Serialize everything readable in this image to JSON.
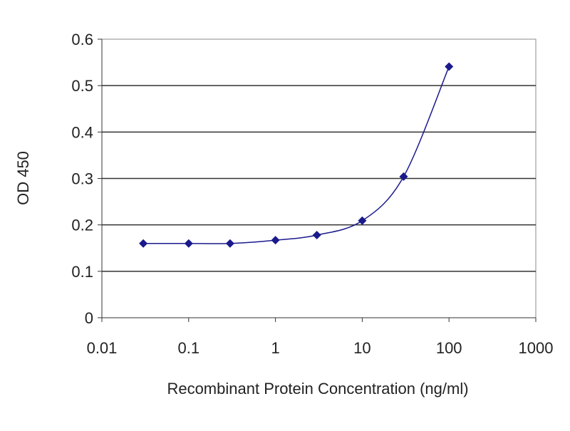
{
  "chart_data": {
    "type": "line",
    "title": "",
    "xlabel": "Recombinant Protein Concentration (ng/ml)",
    "ylabel": "OD 450",
    "xscale": "log",
    "xlim": [
      0.01,
      1000
    ],
    "ylim": [
      0,
      0.6
    ],
    "xticks": [
      "0.01",
      "0.1",
      "1",
      "10",
      "100",
      "1000"
    ],
    "xtick_values": [
      0.01,
      0.1,
      1,
      10,
      100,
      1000
    ],
    "yticks": [
      "0",
      "0.1",
      "0.2",
      "0.3",
      "0.4",
      "0.5",
      "0.6"
    ],
    "ytick_values": [
      0,
      0.1,
      0.2,
      0.3,
      0.4,
      0.5,
      0.6
    ],
    "grid": "horizontal",
    "legend": "none",
    "series": [
      {
        "x": [
          0.03,
          0.1,
          0.3,
          1,
          3,
          10,
          30,
          100
        ],
        "y": [
          0.16,
          0.16,
          0.16,
          0.167,
          0.178,
          0.209,
          0.304,
          0.541
        ],
        "color": "#1a1a8c"
      }
    ]
  }
}
